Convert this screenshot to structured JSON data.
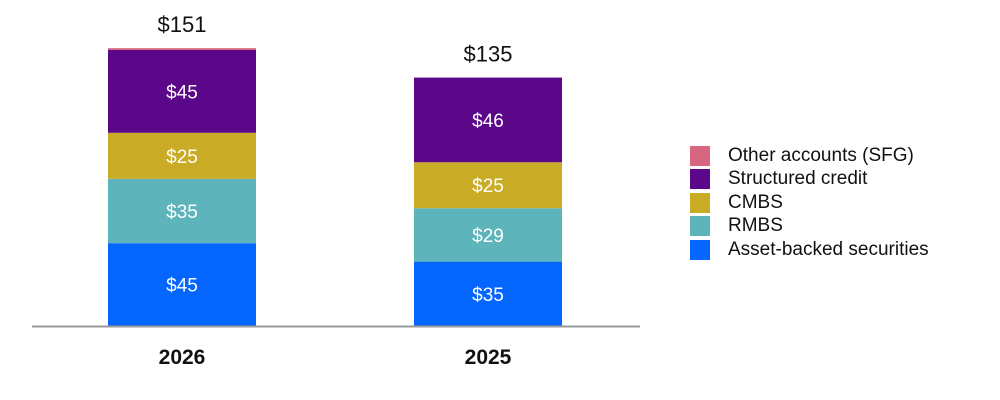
{
  "chart_data": {
    "type": "bar",
    "stacked": true,
    "categories": [
      "2026",
      "2025"
    ],
    "series": [
      {
        "name": "Asset-backed securities",
        "color": "#0466ff",
        "values": [
          45,
          35
        ],
        "labels": [
          "$45",
          "$35"
        ]
      },
      {
        "name": "RMBS",
        "color": "#5db5bb",
        "values": [
          35,
          29
        ],
        "labels": [
          "$35",
          "$29"
        ]
      },
      {
        "name": "CMBS",
        "color": "#c9ab26",
        "values": [
          25,
          25
        ],
        "labels": [
          "$25",
          "$25"
        ]
      },
      {
        "name": "Structured credit",
        "color": "#5a0789",
        "values": [
          45,
          46
        ],
        "labels": [
          "$45",
          "$46"
        ]
      },
      {
        "name": "Other accounts (SFG)",
        "color": "#d8667f",
        "values": [
          1,
          0
        ],
        "labels": [
          "",
          ""
        ]
      }
    ],
    "totals": [
      "$151",
      "$135"
    ],
    "legend_order": [
      4,
      3,
      2,
      1,
      0
    ],
    "legend_position": "right",
    "grid": false
  }
}
